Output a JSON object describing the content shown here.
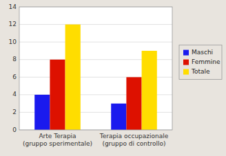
{
  "chart_data": {
    "type": "bar",
    "categories": [
      "Arte Terapia\n(gruppo sperimentale)",
      "Terapia occupazionale\n(gruppo di controllo)"
    ],
    "series": [
      {
        "name": "Maschi",
        "color": "#1a1aee",
        "values": [
          4,
          3
        ]
      },
      {
        "name": "Femmine",
        "color": "#dd1100",
        "values": [
          8,
          6
        ]
      },
      {
        "name": "Totale",
        "color": "#ffdd00",
        "values": [
          12,
          9
        ]
      }
    ],
    "ylim": [
      0,
      14
    ],
    "yticks": [
      0,
      2,
      4,
      6,
      8,
      10,
      12,
      14
    ],
    "grid": true,
    "legend": "right"
  }
}
